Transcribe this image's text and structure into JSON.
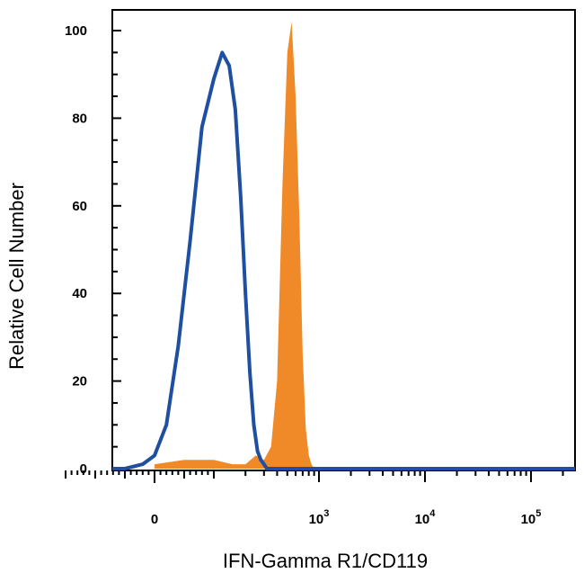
{
  "chart_data": {
    "type": "histogram-overlay",
    "xlabel": "IFN-Gamma R1/CD119",
    "ylabel": "Relative Cell Number",
    "ylim": [
      0,
      100
    ],
    "x_scale": "biexponential (log above 10^2)",
    "x_ticks": [
      {
        "value": 0,
        "base": "0",
        "exp": ""
      },
      {
        "value": 1000,
        "base": "10",
        "exp": "3"
      },
      {
        "value": 10000,
        "base": "10",
        "exp": "4"
      },
      {
        "value": 100000,
        "base": "10",
        "exp": "5"
      }
    ],
    "y_ticks": [
      0,
      20,
      40,
      60,
      80,
      100
    ],
    "grid": false,
    "legend": "none",
    "series": [
      {
        "style": "filled",
        "color": "#f08a28",
        "x": [
          0,
          50,
          100,
          150,
          200,
          250,
          300,
          350,
          400,
          450,
          500,
          550,
          600,
          650,
          700,
          750,
          800,
          850,
          900,
          950
        ],
        "y": [
          1,
          2,
          2,
          1,
          1,
          3,
          2,
          5,
          20,
          65,
          95,
          102,
          85,
          58,
          26,
          9,
          3,
          1,
          0,
          0
        ]
      },
      {
        "style": "outline",
        "color": "#1f4fa0",
        "x": [
          -50,
          -20,
          0,
          20,
          40,
          60,
          80,
          100,
          120,
          140,
          160,
          180,
          200,
          220,
          240,
          260,
          280,
          300,
          320
        ],
        "y": [
          0,
          1,
          3,
          10,
          28,
          52,
          78,
          89,
          95,
          92,
          82,
          62,
          40,
          22,
          10,
          4,
          2,
          1,
          0
        ]
      }
    ]
  }
}
